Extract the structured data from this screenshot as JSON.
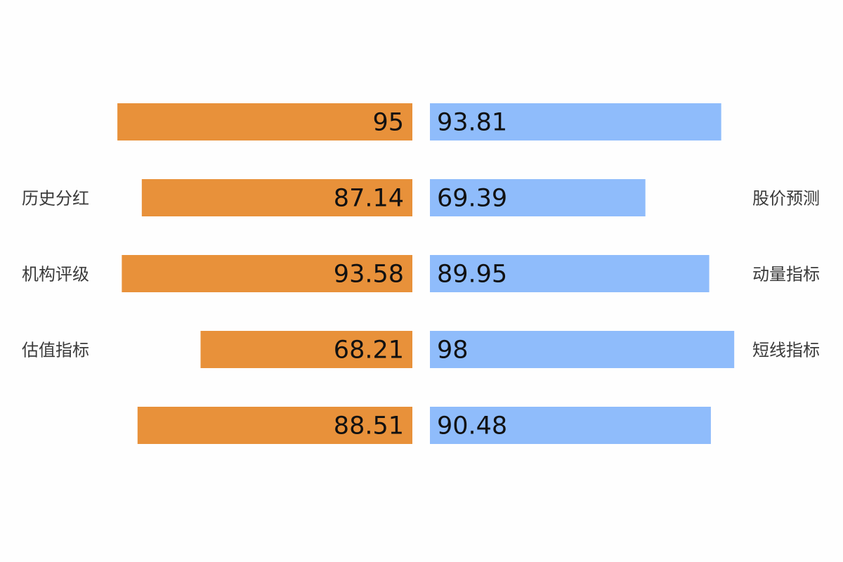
{
  "chart_data": {
    "type": "bar",
    "orientation": "butterfly",
    "xlim": [
      0,
      100
    ],
    "categories_left": [
      "",
      "历史分红",
      "机构评级",
      "估值指标",
      ""
    ],
    "categories_right": [
      "",
      "股价预测",
      "动量指标",
      "短线指标",
      ""
    ],
    "series": [
      {
        "side": "left",
        "color": "#E8913A",
        "values": [
          95,
          87.14,
          93.58,
          68.21,
          88.51
        ]
      },
      {
        "side": "right",
        "color": "#8FBCFB",
        "values": [
          93.81,
          69.39,
          89.95,
          98,
          90.48
        ]
      }
    ],
    "value_labels": {
      "left": [
        "95",
        "87.14",
        "93.58",
        "68.21",
        "88.51"
      ],
      "right": [
        "93.81",
        "69.39",
        "89.95",
        "98",
        "90.48"
      ]
    }
  }
}
